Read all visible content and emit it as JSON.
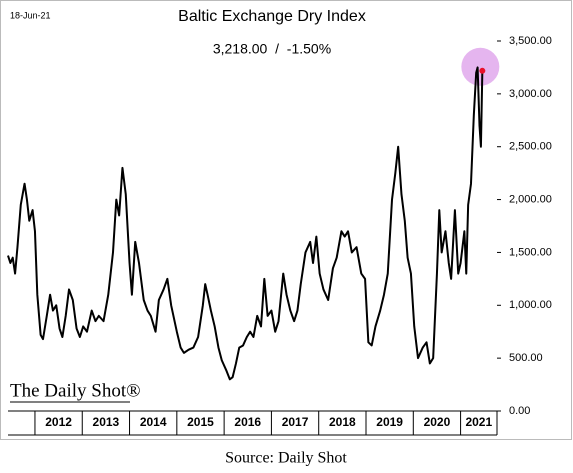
{
  "chart_data": {
    "type": "line",
    "title": "Baltic Exchange Dry Index",
    "subtitle": "3,218.00  /  -1.50%",
    "date_label": "18-Jun-21",
    "logo": "The Daily Shot®",
    "source": "Source: Daily Shot",
    "xlim": [
      2011.43,
      2021.77
    ],
    "ylim": [
      0,
      3700
    ],
    "xticks": [
      2012,
      2013,
      2014,
      2015,
      2016,
      2017,
      2018,
      2019,
      2020,
      2021
    ],
    "yticks": [
      {
        "value": 0,
        "label": "0.00"
      },
      {
        "value": 500,
        "label": "500.00"
      },
      {
        "value": 1000,
        "label": "1,000.00"
      },
      {
        "value": 1500,
        "label": "1,500.00"
      },
      {
        "value": 2000,
        "label": "2,000.00"
      },
      {
        "value": 2500,
        "label": "2,500.00"
      },
      {
        "value": 3000,
        "label": "3,000.00"
      },
      {
        "value": 3500,
        "label": "3,500.00"
      }
    ],
    "series": [
      {
        "name": "Baltic Exchange Dry Index",
        "color": "#000000",
        "highlight_color": "#e0a8ec",
        "last_point_color": "#e8102a",
        "x": [
          2011.43,
          2011.48,
          2011.53,
          2011.58,
          2011.63,
          2011.7,
          2011.78,
          2011.83,
          2011.88,
          2011.95,
          2012.0,
          2012.05,
          2012.12,
          2012.17,
          2012.25,
          2012.32,
          2012.38,
          2012.45,
          2012.52,
          2012.58,
          2012.65,
          2012.72,
          2012.8,
          2012.88,
          2012.95,
          2013.02,
          2013.1,
          2013.2,
          2013.28,
          2013.35,
          2013.45,
          2013.55,
          2013.65,
          2013.72,
          2013.78,
          2013.85,
          2013.92,
          2014.0,
          2014.05,
          2014.12,
          2014.2,
          2014.3,
          2014.38,
          2014.45,
          2014.55,
          2014.62,
          2014.72,
          2014.8,
          2014.88,
          2015.0,
          2015.08,
          2015.15,
          2015.25,
          2015.35,
          2015.45,
          2015.55,
          2015.6,
          2015.65,
          2015.72,
          2015.8,
          2015.88,
          2015.95,
          2016.05,
          2016.12,
          2016.18,
          2016.25,
          2016.32,
          2016.4,
          2016.48,
          2016.55,
          2016.62,
          2016.7,
          2016.78,
          2016.85,
          2016.92,
          2017.0,
          2017.08,
          2017.15,
          2017.25,
          2017.32,
          2017.4,
          2017.48,
          2017.55,
          2017.62,
          2017.72,
          2017.82,
          2017.88,
          2017.95,
          2018.02,
          2018.1,
          2018.2,
          2018.3,
          2018.38,
          2018.48,
          2018.55,
          2018.62,
          2018.7,
          2018.8,
          2018.9,
          2018.98,
          2019.05,
          2019.12,
          2019.2,
          2019.3,
          2019.38,
          2019.46,
          2019.55,
          2019.62,
          2019.68,
          2019.75,
          2019.82,
          2019.88,
          2019.95,
          2020.02,
          2020.1,
          2020.2,
          2020.28,
          2020.35,
          2020.42,
          2020.5,
          2020.55,
          2020.6,
          2020.68,
          2020.75,
          2020.8,
          2020.88,
          2020.95,
          2021.0,
          2021.08,
          2021.12,
          2021.16,
          2021.22,
          2021.28,
          2021.33,
          2021.36,
          2021.4,
          2021.43,
          2021.46
        ],
        "values": [
          1470,
          1400,
          1450,
          1300,
          1550,
          1950,
          2150,
          2000,
          1800,
          1900,
          1700,
          1100,
          720,
          680,
          900,
          1100,
          950,
          1000,
          780,
          700,
          900,
          1150,
          1050,
          780,
          700,
          800,
          750,
          950,
          850,
          900,
          850,
          1100,
          1500,
          2000,
          1850,
          2300,
          2050,
          1400,
          1100,
          1600,
          1400,
          1050,
          950,
          900,
          750,
          1050,
          1150,
          1250,
          1000,
          750,
          600,
          550,
          580,
          600,
          700,
          1000,
          1200,
          1100,
          950,
          800,
          600,
          480,
          380,
          300,
          320,
          450,
          600,
          620,
          700,
          750,
          700,
          900,
          800,
          1250,
          900,
          950,
          750,
          850,
          1300,
          1100,
          950,
          850,
          950,
          1200,
          1500,
          1600,
          1400,
          1650,
          1300,
          1150,
          1050,
          1350,
          1450,
          1700,
          1650,
          1700,
          1500,
          1550,
          1300,
          1250,
          650,
          620,
          800,
          950,
          1100,
          1300,
          2000,
          2250,
          2500,
          2050,
          1800,
          1450,
          1300,
          800,
          500,
          600,
          650,
          450,
          500,
          1300,
          1900,
          1500,
          1700,
          1400,
          1250,
          1900,
          1300,
          1400,
          1700,
          1300,
          1950,
          2150,
          2800,
          3200,
          3250,
          2700,
          2500,
          3218
        ]
      }
    ]
  }
}
